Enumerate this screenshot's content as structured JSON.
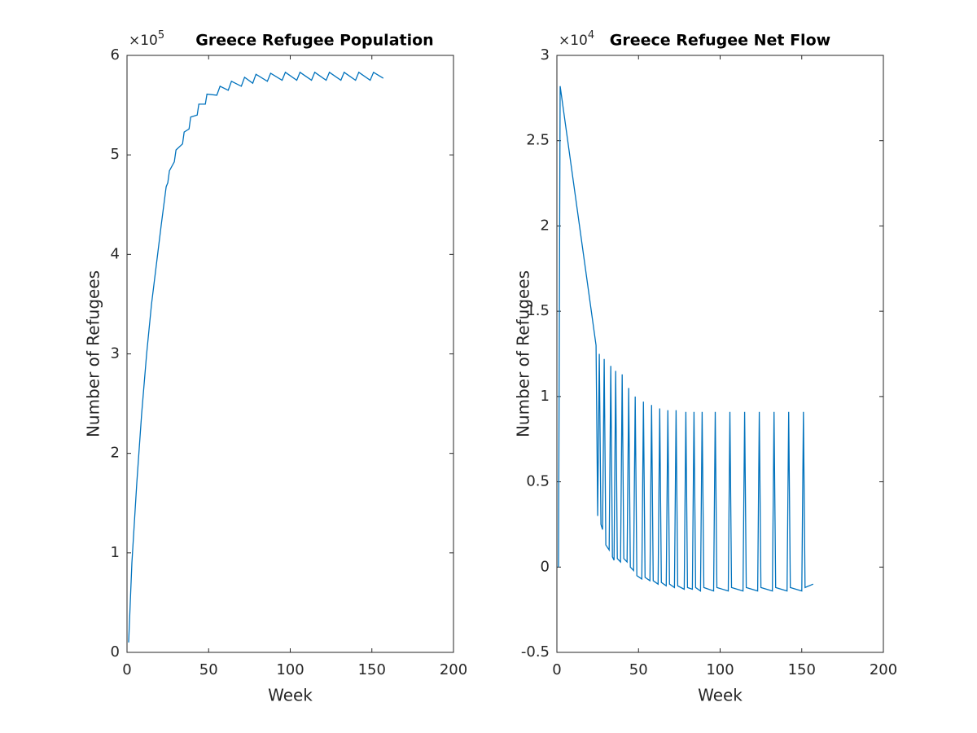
{
  "chart_data": [
    {
      "type": "line",
      "title": "Greece Refugee Population",
      "xlabel": "Week",
      "ylabel": "Number of Refugees",
      "y_multiplier": {
        "base": "×10",
        "power": "5"
      },
      "xlim": [
        0,
        200
      ],
      "xticks": [
        0,
        50,
        100,
        150,
        200
      ],
      "ylim": [
        0,
        6
      ],
      "yticks": [
        0,
        1,
        2,
        3,
        4,
        5,
        6
      ],
      "color": "#0072bd",
      "x": [
        1,
        3,
        6,
        9,
        12,
        15,
        18,
        21,
        24,
        25,
        26,
        29,
        30,
        34,
        35,
        38,
        39,
        43,
        44,
        48,
        49,
        55,
        57,
        62,
        64,
        70,
        72,
        77,
        79,
        86,
        88,
        95,
        97,
        104,
        106,
        113,
        115,
        122,
        124,
        131,
        133,
        140,
        142,
        149,
        151,
        157
      ],
      "values": [
        0.1,
        0.9,
        1.7,
        2.4,
        3.0,
        3.5,
        3.9,
        4.3,
        4.68,
        4.72,
        4.84,
        4.93,
        5.05,
        5.11,
        5.23,
        5.26,
        5.38,
        5.4,
        5.51,
        5.51,
        5.61,
        5.6,
        5.69,
        5.65,
        5.74,
        5.69,
        5.78,
        5.72,
        5.81,
        5.74,
        5.82,
        5.75,
        5.83,
        5.75,
        5.83,
        5.75,
        5.83,
        5.75,
        5.83,
        5.75,
        5.83,
        5.75,
        5.83,
        5.75,
        5.83,
        5.77
      ]
    },
    {
      "type": "line",
      "title": "Greece Refugee Net Flow",
      "xlabel": "Week",
      "ylabel": "Number of Refugees",
      "y_multiplier": {
        "base": "×10",
        "power": "4"
      },
      "xlim": [
        0,
        200
      ],
      "xticks": [
        0,
        50,
        100,
        150,
        200
      ],
      "ylim": [
        -0.5,
        3
      ],
      "yticks": [
        -0.5,
        0,
        0.5,
        1,
        1.5,
        2,
        2.5,
        3
      ],
      "color": "#0072bd",
      "x": [
        1,
        2,
        24,
        25,
        26,
        27,
        28,
        29,
        30,
        32,
        33,
        34,
        35,
        36,
        37,
        39,
        40,
        41,
        43,
        44,
        45,
        47,
        48,
        49,
        52,
        53,
        54,
        57,
        58,
        59,
        62,
        63,
        64,
        67,
        68,
        69,
        72,
        73,
        74,
        78,
        79,
        80,
        83,
        84,
        85,
        88,
        89,
        90,
        96,
        97,
        98,
        105,
        106,
        107,
        114,
        115,
        116,
        123,
        124,
        125,
        132,
        133,
        134,
        141,
        142,
        143,
        150,
        151,
        152,
        157
      ],
      "values": [
        0,
        2.82,
        1.3,
        0.3,
        1.25,
        0.25,
        0.22,
        1.22,
        0.13,
        0.1,
        1.18,
        0.06,
        0.04,
        1.15,
        0.05,
        0.03,
        1.13,
        0.05,
        0.03,
        1.05,
        0.0,
        -0.02,
        1.0,
        -0.05,
        -0.07,
        0.97,
        -0.06,
        -0.08,
        0.95,
        -0.08,
        -0.1,
        0.93,
        -0.09,
        -0.11,
        0.92,
        -0.1,
        -0.12,
        0.92,
        -0.11,
        -0.13,
        0.91,
        -0.12,
        -0.13,
        0.91,
        -0.12,
        -0.14,
        0.91,
        -0.12,
        -0.14,
        0.91,
        -0.12,
        -0.14,
        0.91,
        -0.12,
        -0.14,
        0.91,
        -0.12,
        -0.14,
        0.91,
        -0.12,
        -0.14,
        0.91,
        -0.12,
        -0.14,
        0.91,
        -0.12,
        -0.14,
        0.91,
        -0.12,
        -0.1
      ]
    }
  ]
}
